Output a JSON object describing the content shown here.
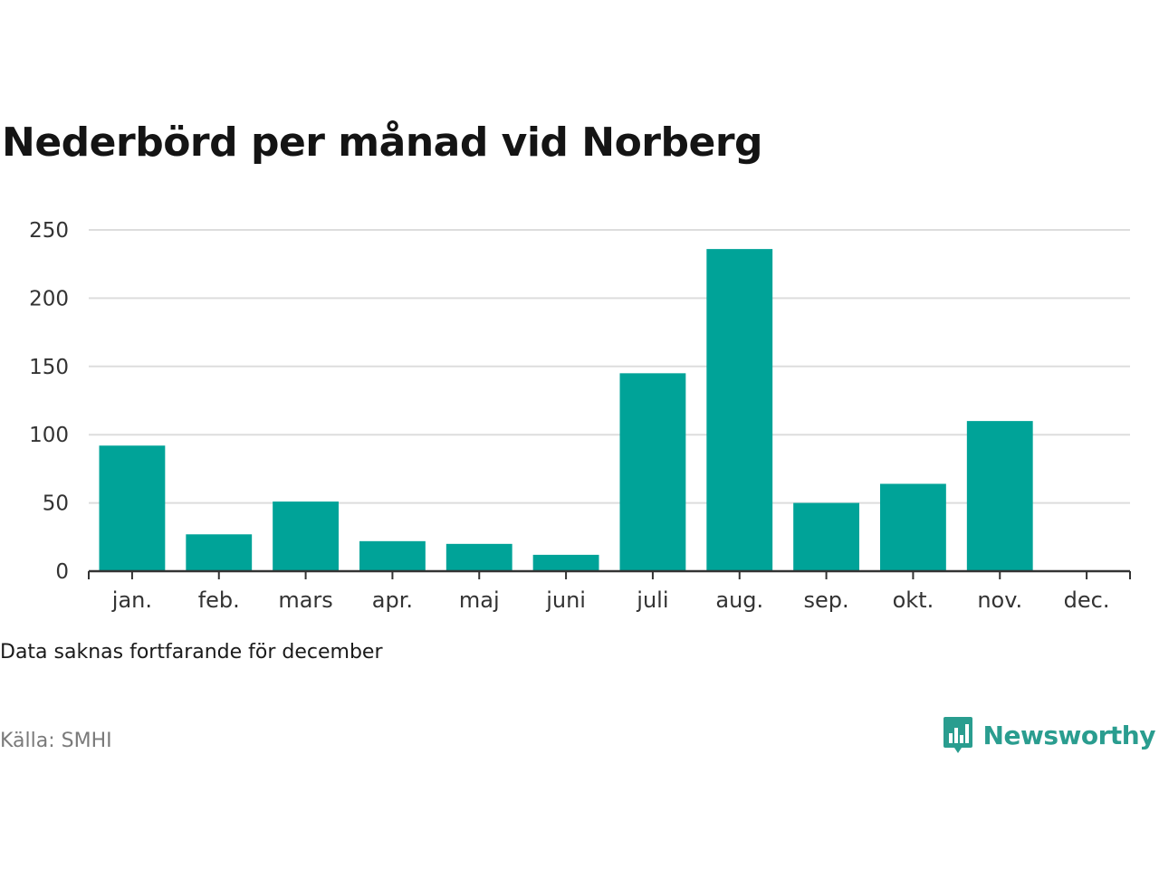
{
  "title": "Nederbörd per månad vid Norberg",
  "note": "Data saknas fortfarande för december",
  "source": "Källa: SMHI",
  "brand": {
    "name": "Newsworthy",
    "icon": "bar-chart-speech-bubble-icon",
    "color": "#2a9d8f"
  },
  "colors": {
    "bar": "#00a398",
    "grid": "#dddddd",
    "axis": "#333333",
    "tick_text": "#333333"
  },
  "chart_data": {
    "type": "bar",
    "title": "Nederbörd per månad vid Norberg",
    "categories": [
      "jan.",
      "feb.",
      "mars",
      "apr.",
      "maj",
      "juni",
      "juli",
      "aug.",
      "sep.",
      "okt.",
      "nov.",
      "dec."
    ],
    "values": [
      92,
      27,
      51,
      22,
      20,
      12,
      145,
      236,
      50,
      64,
      110,
      null
    ],
    "yticks": [
      0,
      50,
      100,
      150,
      200,
      250
    ],
    "ylim": [
      0,
      250
    ],
    "xlabel": "",
    "ylabel": "",
    "grid": true,
    "legend": "none"
  }
}
